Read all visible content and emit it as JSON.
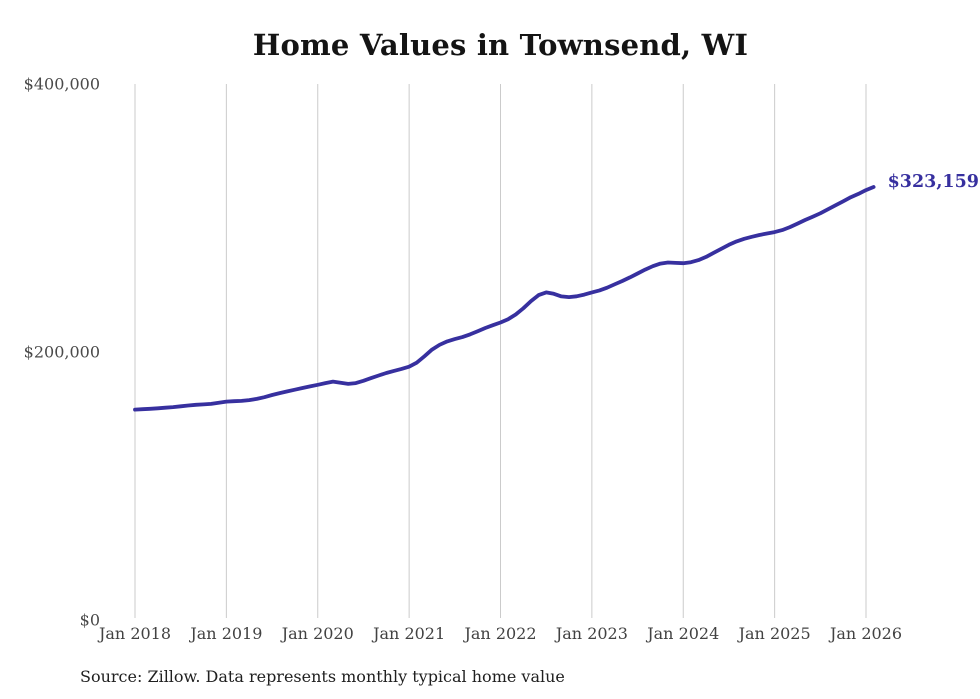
{
  "chart": {
    "line_color": "#37309f",
    "grid_color": "#cbcbcb",
    "background": "#ffffff"
  },
  "chart_data": {
    "type": "line",
    "title": "Home Values in Townsend, WI",
    "xlabel": "",
    "ylabel": "",
    "x_start": "2018-01",
    "x_frequency": "monthly",
    "x_tick_labels": [
      "Jan 2018",
      "Jan 2019",
      "Jan 2020",
      "Jan 2021",
      "Jan 2022",
      "Jan 2023",
      "Jan 2024",
      "Jan 2025",
      "Jan 2026"
    ],
    "y_ticks": [
      0,
      200000,
      400000
    ],
    "y_tick_labels": [
      "$0",
      "$200,000",
      "$400,000"
    ],
    "ylim": [
      0,
      400000
    ],
    "grid": "vertical-only",
    "legend": "none",
    "series": [
      {
        "name": "Typical home value",
        "values": [
          157000,
          157300,
          157600,
          158000,
          158400,
          158900,
          159500,
          160100,
          160600,
          160900,
          161300,
          162100,
          163000,
          163300,
          163500,
          164100,
          165000,
          166300,
          167900,
          169300,
          170600,
          171900,
          173100,
          174300,
          175500,
          176800,
          177900,
          177000,
          176200,
          176800,
          178500,
          180500,
          182500,
          184300,
          185900,
          187400,
          189000,
          192000,
          196800,
          201800,
          205400,
          207900,
          209600,
          211100,
          213100,
          215500,
          217900,
          220000,
          222000,
          224500,
          228000,
          232600,
          238000,
          242500,
          244500,
          243400,
          241500,
          241000,
          241600,
          242800,
          244500,
          246000,
          248000,
          250500,
          253000,
          255700,
          258600,
          261500,
          264000,
          266000,
          266800,
          266500,
          266300,
          267000,
          268600,
          271000,
          274000,
          277000,
          280000,
          282500,
          284500,
          286000,
          287300,
          288400,
          289500,
          291000,
          293200,
          295800,
          298500,
          301000,
          303500,
          306500,
          309500,
          312500,
          315500,
          318000,
          320800,
          323159
        ]
      }
    ],
    "annotation": {
      "text": "$323,159",
      "value": 323159,
      "x": "2026-02"
    },
    "source": "Source: Zillow. Data represents monthly typical home value"
  }
}
